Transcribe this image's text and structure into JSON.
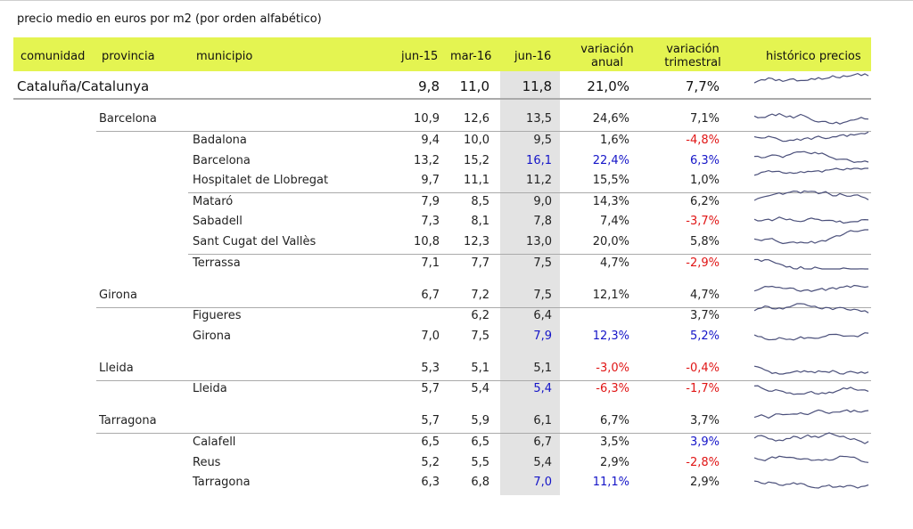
{
  "caption": "precio medio en euros por m2 (por orden alfabético)",
  "header": {
    "comunidad": "comunidad",
    "provincia": "provincia",
    "municipio": "municipio",
    "jun15": "jun-15",
    "mar16": "mar-16",
    "jun16": "jun-16",
    "var_anual_1": "variación",
    "var_anual_2": "anual",
    "var_trim_1": "variación",
    "var_trim_2": "trimestral",
    "historico": "histórico precios"
  },
  "colors": {
    "header_bg": "#e4f451",
    "shade": "#e3e3e3",
    "blue": "#1515c8",
    "red": "#e01515"
  },
  "rows": [
    {
      "level": "comunidad",
      "name": "Cataluña/Catalunya",
      "jun15": "9,8",
      "mar16": "11,0",
      "jun16": "11,8",
      "var_anual": "21,0%",
      "var_trim": "7,7%"
    },
    {
      "level": "provincia",
      "name": "Barcelona",
      "jun15": "10,9",
      "mar16": "12,6",
      "jun16": "13,5",
      "var_anual": "24,6%",
      "var_trim": "7,1%"
    },
    {
      "level": "municipio",
      "name": "Badalona",
      "jun15": "9,4",
      "mar16": "10,0",
      "jun16": "9,5",
      "var_anual": "1,6%",
      "var_trim": "-4,8%",
      "trim_color": "red"
    },
    {
      "level": "municipio",
      "name": "Barcelona",
      "jun15": "13,2",
      "mar16": "15,2",
      "jun16": "16,1",
      "var_anual": "22,4%",
      "var_trim": "6,3%",
      "jun16_color": "blue",
      "anual_color": "blue",
      "trim_color": "blue"
    },
    {
      "level": "municipio",
      "name": "Hospitalet de Llobregat",
      "jun15": "9,7",
      "mar16": "11,1",
      "jun16": "11,2",
      "var_anual": "15,5%",
      "var_trim": "1,0%"
    },
    {
      "level": "municipio",
      "name": "Mataró",
      "jun15": "7,9",
      "mar16": "8,5",
      "jun16": "9,0",
      "var_anual": "14,3%",
      "var_trim": "6,2%"
    },
    {
      "level": "municipio",
      "name": "Sabadell",
      "jun15": "7,3",
      "mar16": "8,1",
      "jun16": "7,8",
      "var_anual": "7,4%",
      "var_trim": "-3,7%",
      "trim_color": "red"
    },
    {
      "level": "municipio",
      "name": "Sant Cugat del Vallès",
      "jun15": "10,8",
      "mar16": "12,3",
      "jun16": "13,0",
      "var_anual": "20,0%",
      "var_trim": "5,8%"
    },
    {
      "level": "municipio",
      "name": "Terrassa",
      "jun15": "7,1",
      "mar16": "7,7",
      "jun16": "7,5",
      "var_anual": "4,7%",
      "var_trim": "-2,9%",
      "trim_color": "red"
    },
    {
      "level": "provincia",
      "name": "Girona",
      "jun15": "6,7",
      "mar16": "7,2",
      "jun16": "7,5",
      "var_anual": "12,1%",
      "var_trim": "4,7%"
    },
    {
      "level": "municipio",
      "name": "Figueres",
      "jun15": "",
      "mar16": "6,2",
      "jun16": "6,4",
      "var_anual": "",
      "var_trim": "3,7%"
    },
    {
      "level": "municipio",
      "name": "Girona",
      "jun15": "7,0",
      "mar16": "7,5",
      "jun16": "7,9",
      "var_anual": "12,3%",
      "var_trim": "5,2%",
      "jun16_color": "blue",
      "anual_color": "blue",
      "trim_color": "blue"
    },
    {
      "level": "provincia",
      "name": "Lleida",
      "jun15": "5,3",
      "mar16": "5,1",
      "jun16": "5,1",
      "var_anual": "-3,0%",
      "var_trim": "-0,4%",
      "anual_color": "red",
      "trim_color": "red"
    },
    {
      "level": "municipio",
      "name": "Lleida",
      "jun15": "5,7",
      "mar16": "5,4",
      "jun16": "5,4",
      "var_anual": "-6,3%",
      "var_trim": "-1,7%",
      "jun16_color": "blue",
      "anual_color": "red",
      "trim_color": "red"
    },
    {
      "level": "provincia",
      "name": "Tarragona",
      "jun15": "5,7",
      "mar16": "5,9",
      "jun16": "6,1",
      "var_anual": "6,7%",
      "var_trim": "3,7%"
    },
    {
      "level": "municipio",
      "name": "Calafell",
      "jun15": "6,5",
      "mar16": "6,5",
      "jun16": "6,7",
      "var_anual": "3,5%",
      "var_trim": "3,9%",
      "trim_color": "blue"
    },
    {
      "level": "municipio",
      "name": "Reus",
      "jun15": "5,2",
      "mar16": "5,5",
      "jun16": "5,4",
      "var_anual": "2,9%",
      "var_trim": "-2,8%",
      "trim_color": "red"
    },
    {
      "level": "municipio",
      "name": "Tarragona",
      "jun15": "6,3",
      "mar16": "6,8",
      "jun16": "7,0",
      "var_anual": "11,1%",
      "var_trim": "2,9%",
      "jun16_color": "blue",
      "anual_color": "blue"
    }
  ]
}
